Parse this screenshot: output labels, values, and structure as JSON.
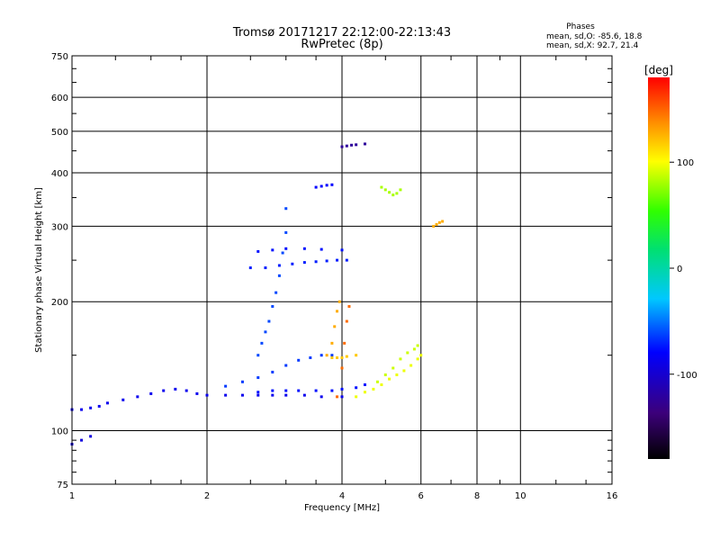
{
  "chart_data": {
    "type": "scatter",
    "title": "Tromsø 20171217 22:12:00-22:13:43",
    "subtitle": "RwPretec (8p)",
    "xlabel": "Frequency [MHz]",
    "ylabel": "Stationary phase Virtual Height [km]",
    "x_scale": "log",
    "y_scale": "log",
    "xlim": [
      1,
      16
    ],
    "ylim": [
      75,
      750
    ],
    "x_ticks": [
      1,
      2,
      4,
      6,
      8,
      10,
      16
    ],
    "x_tick_labels": [
      "1",
      "2",
      "4",
      "6",
      "8",
      "10",
      "16"
    ],
    "y_ticks": [
      75,
      100,
      200,
      300,
      400,
      500,
      600,
      750
    ],
    "y_tick_labels": [
      "75",
      "100",
      "200",
      "300",
      "400",
      "500",
      "600",
      "750"
    ],
    "grid": true,
    "stats": {
      "heading": "Phases",
      "line_o": "mean, sd,O: -85.6, 18.8",
      "line_x": "mean, sd,X:  92.7, 21.4"
    },
    "colorbar": {
      "label": "[deg]",
      "range": [
        -180,
        180
      ],
      "ticks": [
        100,
        0,
        -100
      ],
      "tick_labels": [
        "100",
        "0",
        "-100"
      ]
    },
    "traces": [
      {
        "name": "",
        "phase": -105,
        "points": [
          [
            1.0,
            112
          ],
          [
            1.05,
            112
          ],
          [
            1.1,
            113
          ],
          [
            1.15,
            114
          ],
          [
            1.2,
            116
          ],
          [
            1.3,
            118
          ],
          [
            1.4,
            120
          ],
          [
            1.5,
            122
          ],
          [
            1.6,
            124
          ],
          [
            1.7,
            125
          ],
          [
            1.8,
            124
          ],
          [
            1.9,
            122
          ],
          [
            2.0,
            121
          ],
          [
            2.2,
            121
          ],
          [
            2.4,
            121
          ],
          [
            2.6,
            121
          ],
          [
            2.8,
            121
          ],
          [
            3.0,
            121
          ],
          [
            3.3,
            121
          ],
          [
            3.6,
            120
          ],
          [
            4.0,
            120
          ]
        ]
      },
      {
        "name": "",
        "phase": -95,
        "points": [
          [
            2.6,
            123
          ],
          [
            2.8,
            124
          ],
          [
            3.0,
            124
          ],
          [
            3.2,
            124
          ],
          [
            3.5,
            124
          ],
          [
            3.8,
            124
          ],
          [
            4.0,
            125
          ],
          [
            4.3,
            126
          ],
          [
            4.5,
            128
          ]
        ]
      },
      {
        "name": "",
        "phase": -80,
        "points": [
          [
            2.2,
            127
          ],
          [
            2.4,
            130
          ],
          [
            2.6,
            133
          ],
          [
            2.8,
            137
          ],
          [
            3.0,
            142
          ],
          [
            3.2,
            146
          ],
          [
            3.4,
            148
          ],
          [
            3.6,
            150
          ],
          [
            3.8,
            150
          ],
          [
            4.0,
            148
          ]
        ]
      },
      {
        "name": "",
        "phase": -90,
        "points": [
          [
            2.5,
            240
          ],
          [
            2.7,
            240
          ],
          [
            2.9,
            243
          ],
          [
            3.1,
            245
          ],
          [
            3.3,
            247
          ],
          [
            3.5,
            248
          ],
          [
            3.7,
            249
          ],
          [
            3.9,
            250
          ],
          [
            4.1,
            250
          ]
        ]
      },
      {
        "name": "",
        "phase": -75,
        "points": [
          [
            2.6,
            150
          ],
          [
            2.65,
            160
          ],
          [
            2.7,
            170
          ],
          [
            2.75,
            180
          ],
          [
            2.8,
            195
          ],
          [
            2.85,
            210
          ],
          [
            2.9,
            230
          ],
          [
            2.95,
            260
          ],
          [
            3.0,
            290
          ],
          [
            3.0,
            330
          ]
        ]
      },
      {
        "name": "",
        "phase": -95,
        "points": [
          [
            2.6,
            262
          ],
          [
            2.8,
            264
          ],
          [
            3.0,
            266
          ],
          [
            3.3,
            266
          ],
          [
            3.6,
            265
          ],
          [
            4.0,
            264
          ]
        ]
      },
      {
        "name": "",
        "phase": -130,
        "points": [
          [
            4.0,
            460
          ],
          [
            4.1,
            462
          ],
          [
            4.2,
            464
          ],
          [
            4.3,
            465
          ],
          [
            4.5,
            467
          ]
        ]
      },
      {
        "name": "",
        "phase": -100,
        "points": [
          [
            3.5,
            370
          ],
          [
            3.6,
            372
          ],
          [
            3.7,
            374
          ],
          [
            3.8,
            375
          ]
        ]
      },
      {
        "name": "",
        "phase": 130,
        "points": [
          [
            3.7,
            150
          ],
          [
            3.8,
            160
          ],
          [
            3.85,
            175
          ],
          [
            3.9,
            190
          ],
          [
            3.95,
            200
          ]
        ]
      },
      {
        "name": "",
        "phase": 150,
        "points": [
          [
            3.9,
            120
          ],
          [
            4.0,
            140
          ],
          [
            4.05,
            160
          ],
          [
            4.1,
            180
          ],
          [
            4.15,
            195
          ]
        ]
      },
      {
        "name": "",
        "phase": 120,
        "points": [
          [
            3.8,
            148
          ],
          [
            3.9,
            148
          ],
          [
            4.0,
            148
          ],
          [
            4.1,
            149
          ],
          [
            4.3,
            150
          ]
        ]
      },
      {
        "name": "",
        "phase": 95,
        "points": [
          [
            4.3,
            120
          ],
          [
            4.5,
            123
          ],
          [
            4.7,
            125
          ],
          [
            4.9,
            128
          ],
          [
            5.1,
            132
          ],
          [
            5.3,
            135
          ],
          [
            5.5,
            138
          ],
          [
            5.7,
            142
          ],
          [
            5.9,
            147
          ],
          [
            6.0,
            150
          ]
        ]
      },
      {
        "name": "",
        "phase": 85,
        "points": [
          [
            4.8,
            130
          ],
          [
            5.0,
            135
          ],
          [
            5.2,
            140
          ],
          [
            5.4,
            147
          ],
          [
            5.6,
            152
          ],
          [
            5.8,
            155
          ],
          [
            5.9,
            158
          ]
        ]
      },
      {
        "name": "",
        "phase": 75,
        "points": [
          [
            4.9,
            370
          ],
          [
            5.0,
            365
          ],
          [
            5.1,
            360
          ],
          [
            5.2,
            355
          ],
          [
            5.3,
            358
          ],
          [
            5.4,
            365
          ]
        ]
      },
      {
        "name": "",
        "phase": 130,
        "points": [
          [
            6.4,
            300
          ],
          [
            6.5,
            303
          ],
          [
            6.6,
            306
          ],
          [
            6.7,
            308
          ]
        ]
      },
      {
        "name": "",
        "phase": -110,
        "points": [
          [
            1.0,
            93
          ],
          [
            1.05,
            95
          ],
          [
            1.1,
            97
          ]
        ]
      }
    ]
  }
}
